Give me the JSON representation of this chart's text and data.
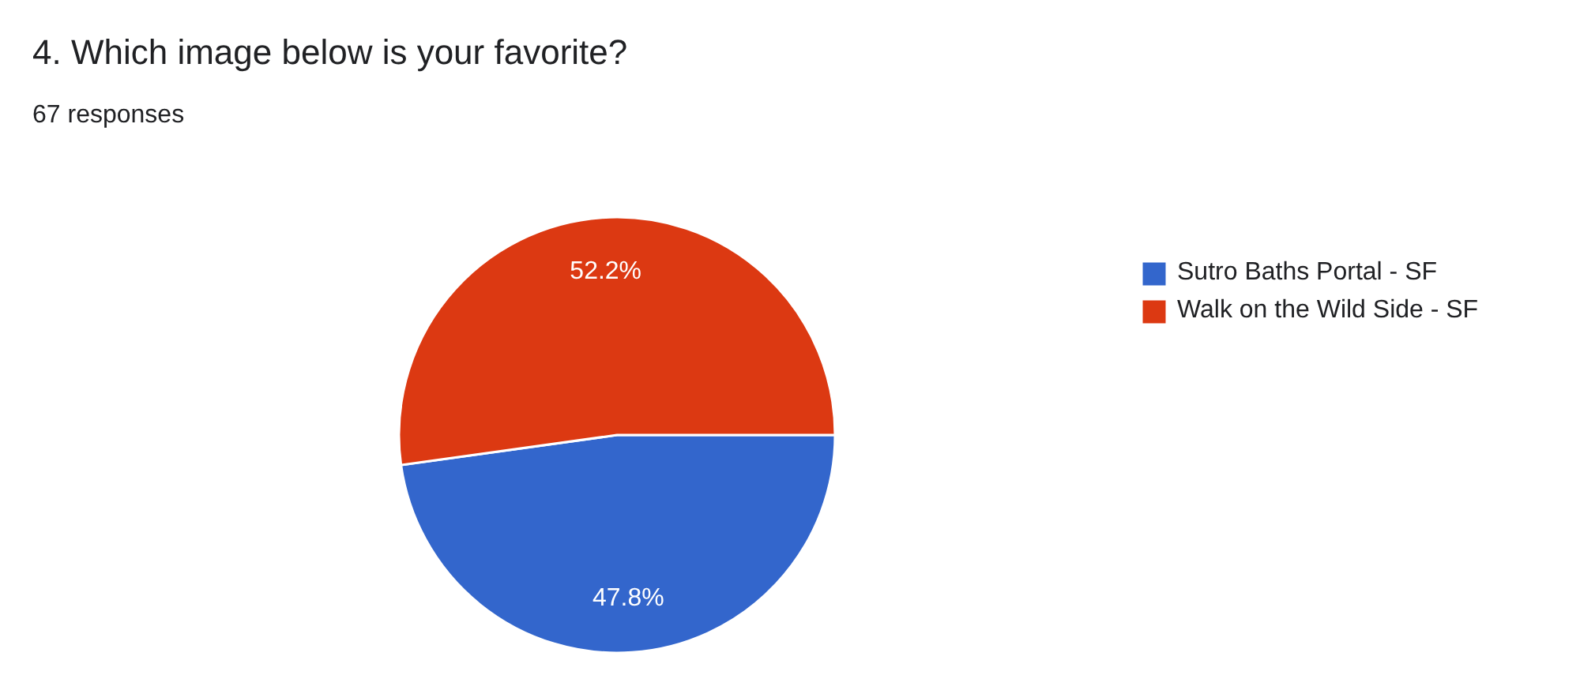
{
  "chart_data": {
    "type": "pie",
    "title": "4. Which image below is your favorite?",
    "subtitle": "67 responses",
    "categories": [
      "Sutro Baths Portal - SF",
      "Walk on the Wild Side - SF"
    ],
    "values": [
      47.8,
      52.2
    ],
    "colors": [
      "#3366cc",
      "#dc3912"
    ],
    "value_labels": [
      "47.8%",
      "52.2%"
    ],
    "legend": "right"
  }
}
